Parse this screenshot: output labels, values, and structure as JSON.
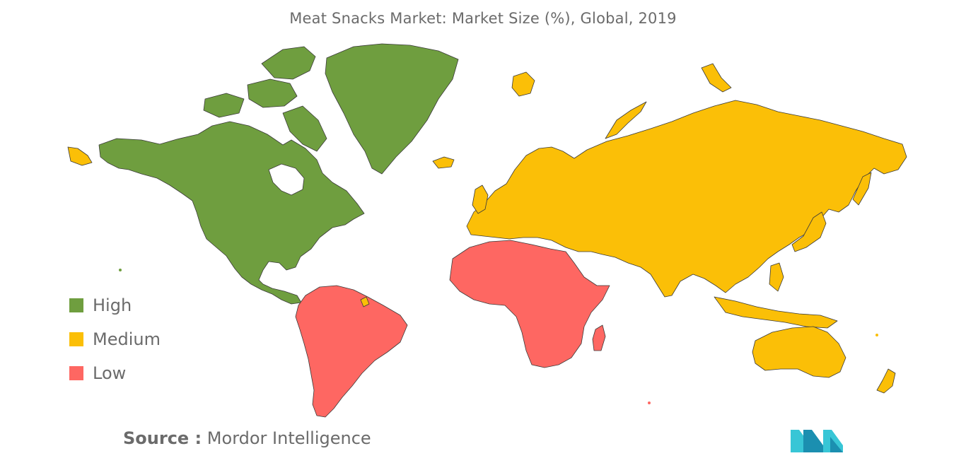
{
  "title": "Meat Snacks Market: Market Size (%), Global, 2019",
  "legend": [
    {
      "label": "High",
      "color": "#6f9e3f"
    },
    {
      "label": "Medium",
      "color": "#fbbf07"
    },
    {
      "label": "Low",
      "color": "#fe6762"
    }
  ],
  "regions": {
    "north_america": "High",
    "greenland": "High",
    "central_america": "High",
    "south_america": "Low",
    "africa": "Low",
    "europe": "Medium",
    "asia": "Medium",
    "oceania": "Medium"
  },
  "source": {
    "key": "Source :",
    "value": "Mordor Intelligence"
  },
  "logo": {
    "icon": "mordor-intelligence-logo-icon",
    "colors": [
      "#1b8fb0",
      "#38c6d6"
    ]
  }
}
